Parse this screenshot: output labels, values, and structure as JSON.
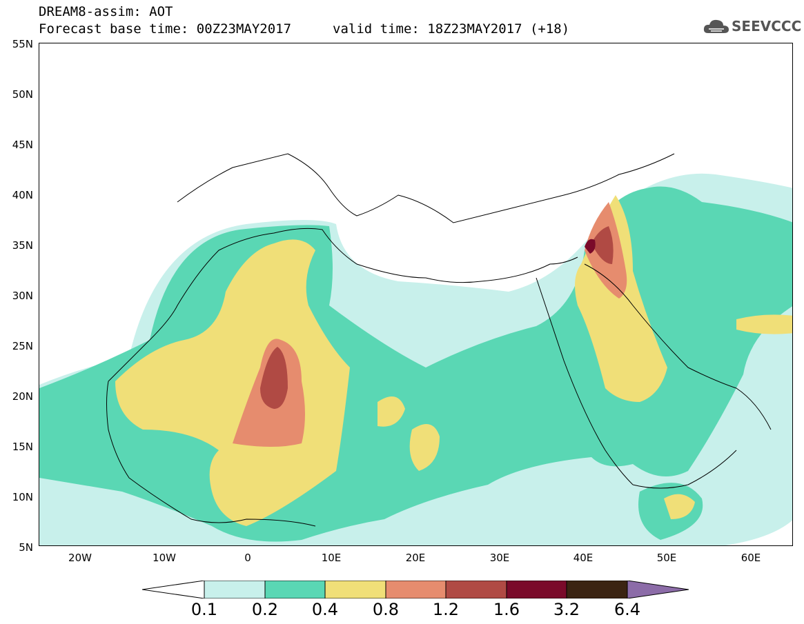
{
  "header": {
    "title": "DREAM8-assim: AOT",
    "base_time": "Forecast base time: 00Z23MAY2017",
    "valid_time": "valid time: 18Z23MAY2017 (+18)",
    "logo_text": "SEEVCCC"
  },
  "axes": {
    "lat_labels": [
      "55N",
      "50N",
      "45N",
      "40N",
      "35N",
      "30N",
      "25N",
      "20N",
      "15N",
      "10N",
      "5N"
    ],
    "lon_labels": [
      "20W",
      "10W",
      "0",
      "10E",
      "20E",
      "30E",
      "40E",
      "50E",
      "60E"
    ]
  },
  "colorbar": {
    "labels": [
      "0.1",
      "0.2",
      "0.4",
      "0.8",
      "1.2",
      "1.6",
      "3.2",
      "6.4"
    ],
    "colors": [
      "#c8f0eb",
      "#5ad7b4",
      "#f0df78",
      "#e68c6e",
      "#b04a44",
      "#7a0a2a",
      "#3b2412",
      "#8c6ca8"
    ]
  },
  "colors": {
    "level1": "#c8f0eb",
    "level2": "#5ad7b4",
    "level3": "#f0df78",
    "level4": "#e68c6e",
    "level5": "#b04a44",
    "level6": "#7a0a2a"
  }
}
